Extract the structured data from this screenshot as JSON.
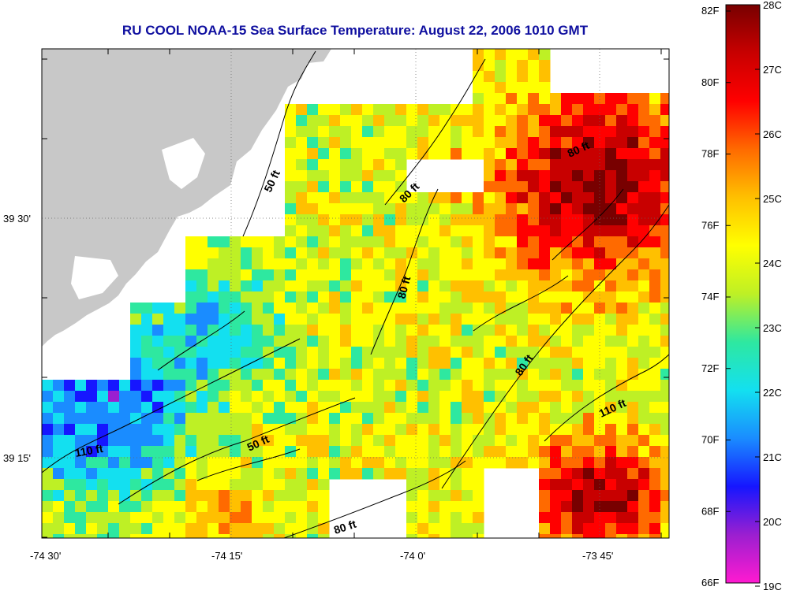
{
  "title": "RU COOL  NOAA-15  Sea Surface Temperature:  August 22, 2006 1010 GMT",
  "map": {
    "lon_range": [
      -74.5,
      -73.65
    ],
    "lat_range": [
      39.1,
      39.7
    ],
    "x_ticks": [
      "-74 30'",
      "-74 15'",
      "-74 0'",
      "-73 45'"
    ],
    "y_ticks": [
      "39 30'",
      "39 15'"
    ],
    "land_color": "#c8c8c8",
    "nodata_color": "#ffffff"
  },
  "contour_labels": [
    {
      "text": "50 ft"
    },
    {
      "text": "80 ft"
    },
    {
      "text": "80 ft"
    },
    {
      "text": "80 ft"
    },
    {
      "text": "80 ft"
    },
    {
      "text": "110 ft"
    },
    {
      "text": "110 ft"
    },
    {
      "text": "50 ft"
    },
    {
      "text": "80 ft"
    }
  ],
  "colorbar": {
    "min_c": 19,
    "max_c": 28,
    "f_ticks": [
      "82F",
      "80F",
      "78F",
      "76F",
      "74F",
      "72F",
      "70F",
      "68F",
      "66F"
    ],
    "c_ticks": [
      "28C",
      "27C",
      "26C",
      "25C",
      "24C",
      "23C",
      "22C",
      "21C",
      "20C",
      "19C"
    ],
    "colors": [
      "#ff1ad0",
      "#9b1fd0",
      "#1616ff",
      "#1a8cff",
      "#13e0f0",
      "#2ee8a0",
      "#bef025",
      "#ffff00",
      "#ffc000",
      "#ff6a00",
      "#ff0000",
      "#c80000",
      "#780000"
    ]
  }
}
